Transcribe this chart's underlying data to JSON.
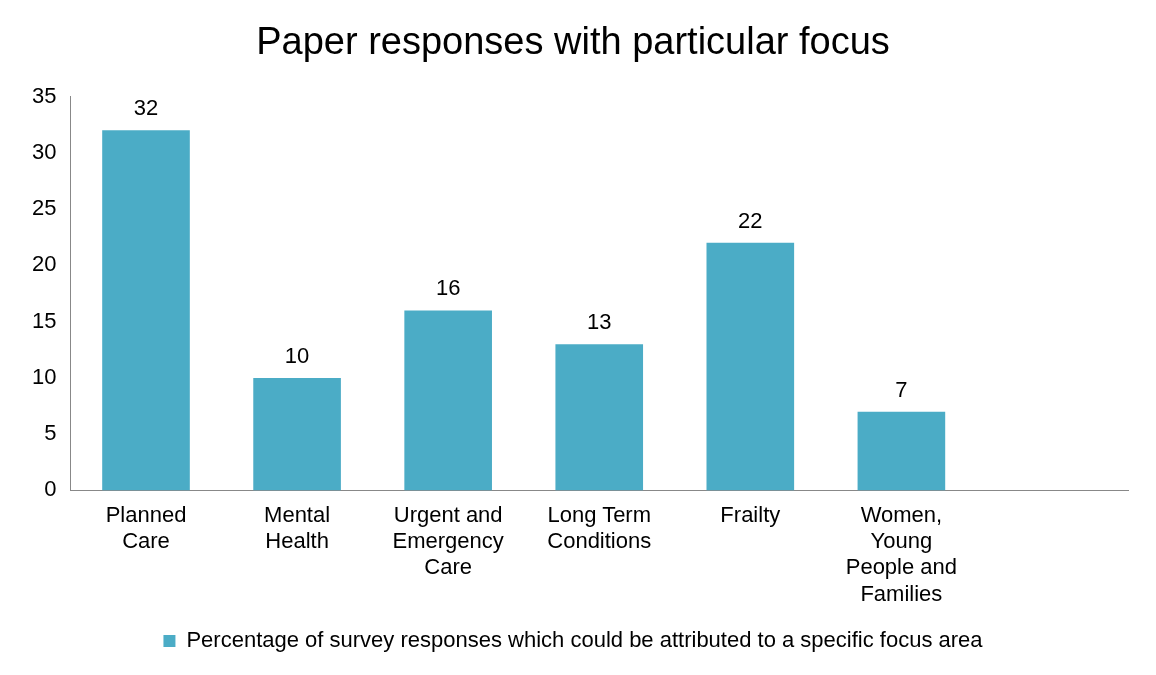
{
  "chart_data": {
    "type": "bar",
    "title": "Paper responses with particular focus",
    "categories": [
      "Planned Care",
      "Mental Health",
      "Urgent and Emergency Care",
      "Long Term Conditions",
      "Frailty",
      "Women, Young People and Families",
      null
    ],
    "series": [
      {
        "name": "Percentage of survey responses which could be attributed to a specific focus area",
        "color": "#4bacc6",
        "values": [
          32,
          10,
          16,
          13,
          22,
          7,
          null
        ]
      }
    ],
    "ylim": [
      0,
      35
    ],
    "yticks": [
      0,
      5,
      10,
      15,
      20,
      25,
      30,
      35
    ],
    "grid": false,
    "legend": "bottom",
    "data_labels": true
  }
}
